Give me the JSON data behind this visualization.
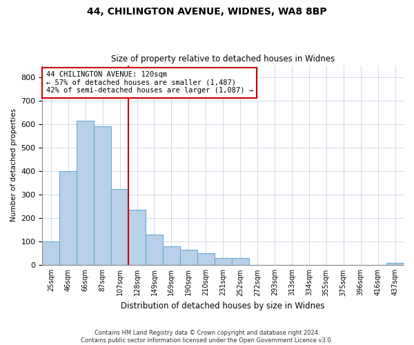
{
  "title1": "44, CHILINGTON AVENUE, WIDNES, WA8 8BP",
  "title2": "Size of property relative to detached houses in Widnes",
  "xlabel": "Distribution of detached houses by size in Widnes",
  "ylabel": "Number of detached properties",
  "categories": [
    "25sqm",
    "46sqm",
    "66sqm",
    "87sqm",
    "107sqm",
    "128sqm",
    "149sqm",
    "169sqm",
    "190sqm",
    "210sqm",
    "231sqm",
    "252sqm",
    "272sqm",
    "293sqm",
    "313sqm",
    "334sqm",
    "355sqm",
    "375sqm",
    "396sqm",
    "416sqm",
    "437sqm"
  ],
  "values": [
    100,
    400,
    615,
    590,
    325,
    235,
    130,
    80,
    65,
    50,
    30,
    30,
    0,
    0,
    0,
    0,
    0,
    0,
    0,
    0,
    10
  ],
  "bar_color": "#b8d0ea",
  "bar_edge_color": "#6aaad4",
  "vline_x": 4.5,
  "vline_color": "#cc0000",
  "annotation_box_text": "44 CHILINGTON AVENUE: 120sqm\n← 57% of detached houses are smaller (1,487)\n42% of semi-detached houses are larger (1,087) →",
  "annotation_box_color": "#cc0000",
  "annotation_box_fill": "#ffffff",
  "footer1": "Contains HM Land Registry data © Crown copyright and database right 2024.",
  "footer2": "Contains public sector information licensed under the Open Government Licence v3.0.",
  "ylim": [
    0,
    850
  ],
  "yticks": [
    0,
    100,
    200,
    300,
    400,
    500,
    600,
    700,
    800
  ],
  "background_color": "#ffffff",
  "grid_color": "#c8d4e4"
}
